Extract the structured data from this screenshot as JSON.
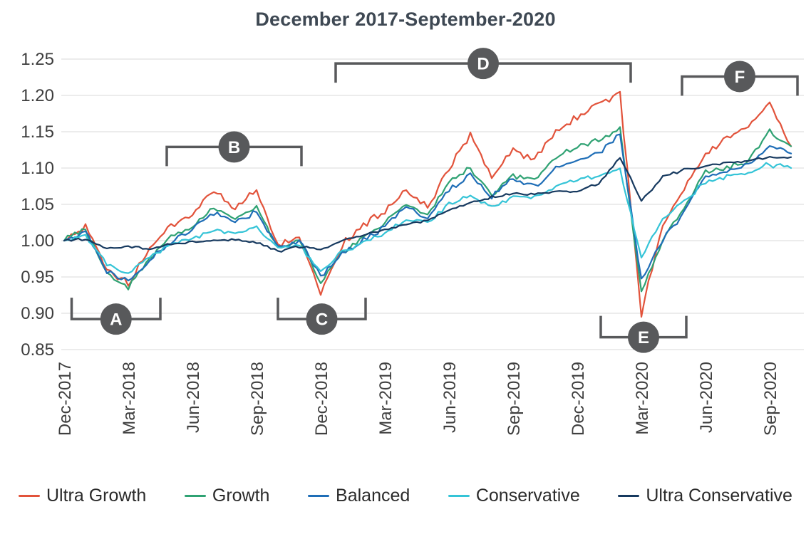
{
  "title": "December 2017-September-2020",
  "chart_data": {
    "type": "line",
    "title": "December 2017-September-2020",
    "x_unit": "month",
    "x_tick_indices": [
      0,
      3,
      6,
      9,
      12,
      15,
      18,
      21,
      24,
      27,
      30,
      33
    ],
    "x_tick_labels": [
      "Dec-2017",
      "Mar-2018",
      "Jun-2018",
      "Sep-2018",
      "Dec-2018",
      "Mar-2019",
      "Jun-2019",
      "Sep-2019",
      "Dec-2019",
      "Mar-2020",
      "Jun-2020",
      "Sep-2020"
    ],
    "y_ticks": [
      0.85,
      0.9,
      0.95,
      1.0,
      1.05,
      1.1,
      1.15,
      1.2,
      1.25
    ],
    "ylim": [
      0.85,
      1.25
    ],
    "grid": "horizontal",
    "legend_position": "bottom",
    "annotation_color": "#58595b",
    "series": [
      {
        "name": "Ultra Growth",
        "color": "#e2533b",
        "noise": 0.006,
        "values": [
          1.0,
          1.02,
          0.96,
          0.94,
          0.99,
          1.02,
          1.035,
          1.07,
          1.045,
          1.068,
          0.995,
          1.005,
          0.928,
          0.995,
          1.02,
          1.04,
          1.068,
          1.045,
          1.1,
          1.145,
          1.09,
          1.125,
          1.11,
          1.15,
          1.17,
          1.19,
          1.2,
          0.9,
          1.02,
          1.07,
          1.12,
          1.14,
          1.16,
          1.19,
          1.13
        ]
      },
      {
        "name": "Growth",
        "color": "#2fa273",
        "noise": 0.005,
        "values": [
          1.0,
          1.015,
          0.955,
          0.935,
          0.975,
          1.005,
          1.02,
          1.045,
          1.03,
          1.045,
          0.99,
          1.0,
          0.94,
          0.985,
          1.005,
          1.025,
          1.05,
          1.035,
          1.08,
          1.1,
          1.065,
          1.09,
          1.085,
          1.115,
          1.13,
          1.14,
          1.155,
          0.93,
          1.0,
          1.045,
          1.095,
          1.1,
          1.11,
          1.15,
          1.13
        ]
      },
      {
        "name": "Balanced",
        "color": "#1f6eb7",
        "noise": 0.005,
        "values": [
          1.0,
          1.012,
          0.958,
          0.942,
          0.972,
          1.0,
          1.015,
          1.04,
          1.025,
          1.04,
          0.99,
          1.0,
          0.952,
          0.982,
          1.0,
          1.02,
          1.045,
          1.03,
          1.07,
          1.09,
          1.06,
          1.085,
          1.075,
          1.1,
          1.11,
          1.12,
          1.145,
          0.945,
          1.0,
          1.04,
          1.09,
          1.095,
          1.105,
          1.13,
          1.12
        ]
      },
      {
        "name": "Conservative",
        "color": "#35c4d7",
        "noise": 0.004,
        "values": [
          1.0,
          1.008,
          0.968,
          0.955,
          0.978,
          0.995,
          1.002,
          1.015,
          1.01,
          1.018,
          0.99,
          0.995,
          0.957,
          0.985,
          0.998,
          1.01,
          1.03,
          1.025,
          1.05,
          1.062,
          1.045,
          1.06,
          1.06,
          1.075,
          1.085,
          1.088,
          1.098,
          0.975,
          1.03,
          1.055,
          1.08,
          1.088,
          1.095,
          1.105,
          1.1
        ]
      },
      {
        "name": "Ultra Conservative",
        "color": "#16395f",
        "noise": 0.0022,
        "values": [
          1.0,
          1.002,
          0.988,
          0.992,
          0.988,
          0.995,
          0.998,
          1.0,
          1.002,
          0.998,
          0.985,
          0.992,
          0.988,
          1.0,
          1.008,
          1.015,
          1.022,
          1.028,
          1.042,
          1.052,
          1.06,
          1.065,
          1.063,
          1.068,
          1.068,
          1.078,
          1.115,
          1.055,
          1.088,
          1.098,
          1.103,
          1.108,
          1.11,
          1.115,
          1.115
        ]
      }
    ],
    "annotations": [
      {
        "label": "A",
        "from": 0.35,
        "to": 4.5,
        "value": 0.892,
        "side": "bottom"
      },
      {
        "label": "B",
        "from": 4.8,
        "to": 11.1,
        "value": 1.129,
        "side": "top"
      },
      {
        "label": "C",
        "from": 10.0,
        "to": 14.1,
        "value": 0.892,
        "side": "bottom"
      },
      {
        "label": "D",
        "from": 12.7,
        "to": 26.5,
        "value": 1.244,
        "side": "top"
      },
      {
        "label": "E",
        "from": 25.1,
        "to": 29.1,
        "value": 0.867,
        "side": "bottom"
      },
      {
        "label": "F",
        "from": 28.9,
        "to": 34.3,
        "value": 1.226,
        "side": "top"
      }
    ]
  }
}
